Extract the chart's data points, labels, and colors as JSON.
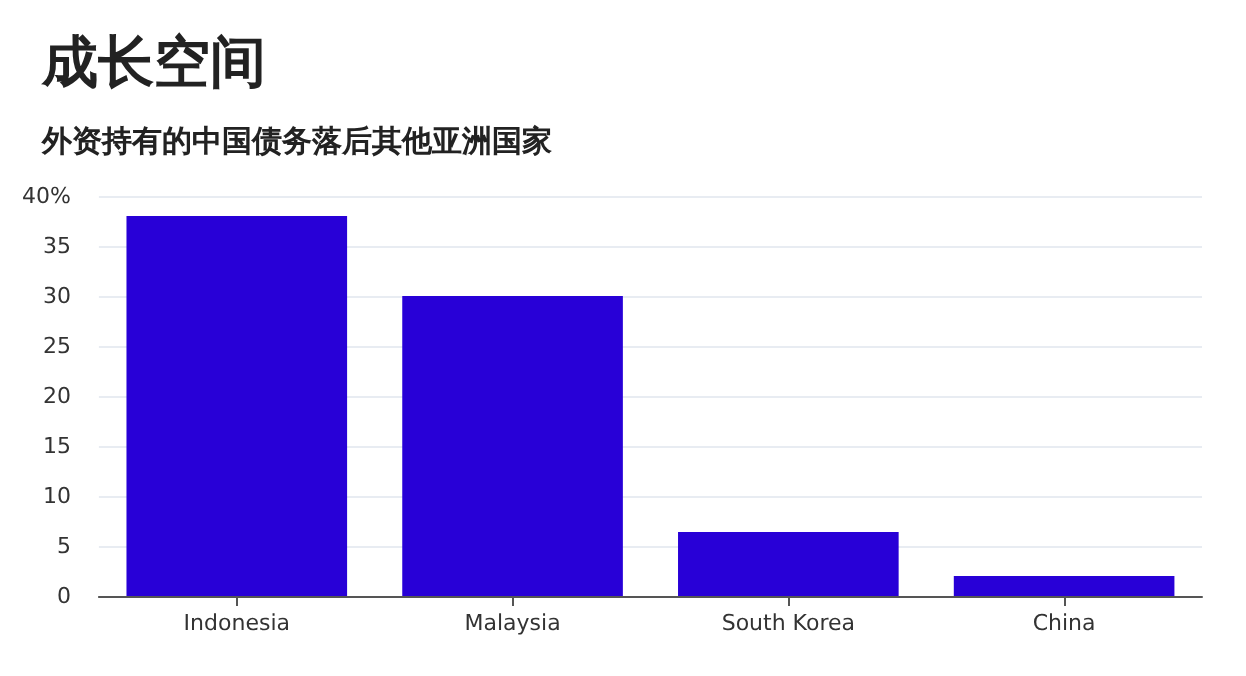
{
  "chart_data": {
    "type": "bar",
    "title": "成长空间",
    "subtitle": "外资持有的中国债务落后其他亚洲国家",
    "categories": [
      "Indonesia",
      "Malaysia",
      "South Korea",
      "China"
    ],
    "values": [
      38,
      30,
      6.4,
      2.0
    ],
    "color": "#2800d7",
    "ylim": [
      0,
      40
    ],
    "yticks": [
      0,
      5,
      10,
      15,
      20,
      25,
      30,
      35,
      {
        "value": 40,
        "label": "40%"
      }
    ],
    "grid": "y"
  }
}
